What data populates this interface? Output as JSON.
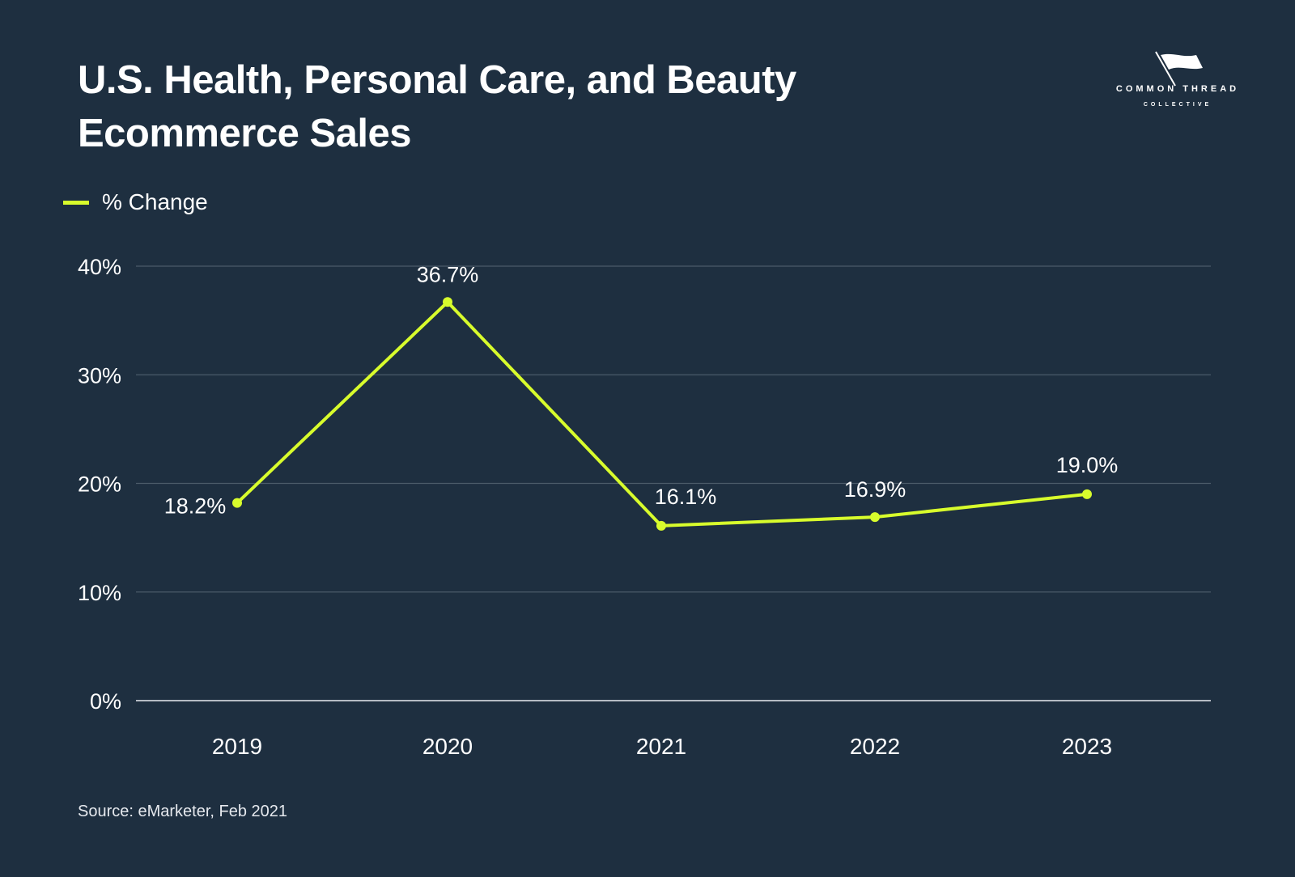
{
  "title_lines": [
    "U.S. Health, Personal Care, and Beauty",
    "Ecommerce Sales"
  ],
  "logo": {
    "word": "COMMON THREAD",
    "sub": "COLLECTIVE",
    "icon": "flag-needle-icon"
  },
  "source": "Source: eMarketer, Feb 2021",
  "colors": {
    "background": "#1e2f40",
    "line": "#d8fc2c",
    "grid": "#4b5b69",
    "baseline": "#e8ecef",
    "text": "#ffffff"
  },
  "chart_data": {
    "type": "line",
    "title": "U.S. Health, Personal Care, and Beauty Ecommerce Sales",
    "categories": [
      "2019",
      "2020",
      "2021",
      "2022",
      "2023"
    ],
    "series": [
      {
        "name": "% Change",
        "values": [
          18.2,
          36.7,
          16.1,
          16.9,
          19.0
        ],
        "labels": [
          "18.2%",
          "36.7%",
          "16.1%",
          "16.9%",
          "19.0%"
        ]
      }
    ],
    "ylim": [
      0,
      40
    ],
    "yticks": [
      0,
      10,
      20,
      30,
      40
    ],
    "ytick_labels": [
      "0%",
      "10%",
      "20%",
      "30%",
      "40%"
    ],
    "xlabel": "",
    "ylabel": "",
    "grid": true,
    "legend_position": "top-left"
  }
}
